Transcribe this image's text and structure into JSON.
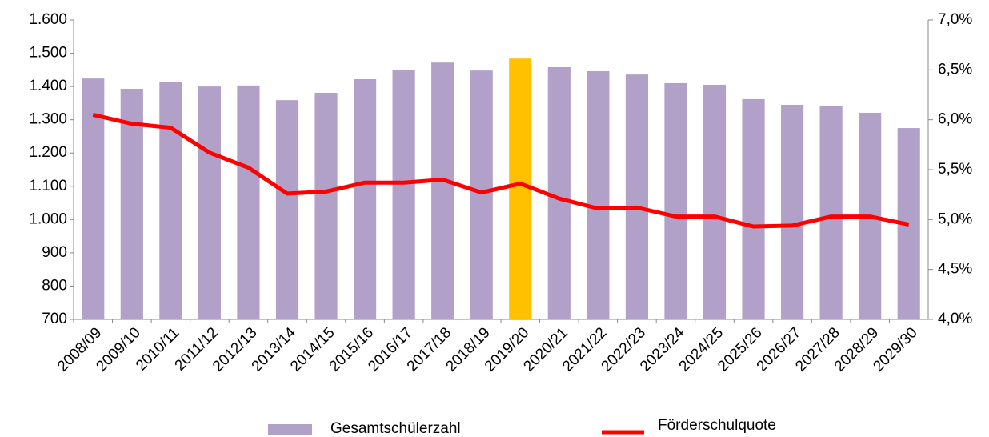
{
  "chart_data": {
    "type": "bar-line",
    "categories": [
      "2008/09",
      "2009/10",
      "2010/11",
      "2011/12",
      "2012/13",
      "2013/14",
      "2014/15",
      "2015/16",
      "2016/17",
      "2017/18",
      "2018/19",
      "2019/20",
      "2020/21",
      "2021/22",
      "2022/23",
      "2023/24",
      "2024/25",
      "2025/26",
      "2026/27",
      "2027/28",
      "2028/29",
      "2029/30"
    ],
    "series": [
      {
        "name": "Gesamtschülerzahl",
        "type": "bar",
        "color": "#b1a0c7",
        "colors": [
          "#b1a0c7",
          "#b1a0c7",
          "#b1a0c7",
          "#b1a0c7",
          "#b1a0c7",
          "#b1a0c7",
          "#b1a0c7",
          "#b1a0c7",
          "#b1a0c7",
          "#b1a0c7",
          "#b1a0c7",
          "#ffc000",
          "#b1a0c7",
          "#b1a0c7",
          "#b1a0c7",
          "#b1a0c7",
          "#b1a0c7",
          "#b1a0c7",
          "#b1a0c7",
          "#b1a0c7",
          "#b1a0c7",
          "#b1a0c7"
        ],
        "values": [
          1424,
          1393,
          1414,
          1400,
          1403,
          1359,
          1381,
          1422,
          1450,
          1472,
          1448,
          1484,
          1458,
          1446,
          1436,
          1410,
          1405,
          1362,
          1345,
          1342,
          1321,
          1275
        ]
      },
      {
        "name": "Förderschulquote",
        "type": "line",
        "color": "#ff0000",
        "axis": "y2",
        "values": [
          6.05,
          5.96,
          5.92,
          5.67,
          5.52,
          5.26,
          5.28,
          5.37,
          5.37,
          5.4,
          5.27,
          5.36,
          5.21,
          5.11,
          5.12,
          5.03,
          5.03,
          4.93,
          4.94,
          5.03,
          5.03,
          4.95
        ]
      }
    ],
    "ylim": [
      700,
      1600
    ],
    "yticks": [
      700,
      800,
      900,
      {
        "value": 1000,
        "label": "1.000"
      },
      {
        "value": 1100,
        "label": "1.100"
      },
      {
        "value": 1200,
        "label": "1.200"
      },
      {
        "value": 1300,
        "label": "1.300"
      },
      {
        "value": 1400,
        "label": "1.400"
      },
      {
        "value": 1500,
        "label": "1.500"
      },
      {
        "value": 1600,
        "label": "1.600"
      }
    ],
    "y2lim": [
      4,
      7
    ],
    "y2ticks": [
      {
        "value": 4,
        "label": "4,0%"
      },
      {
        "value": 4.5,
        "label": "4,5%"
      },
      {
        "value": 5,
        "label": "5,0%"
      },
      {
        "value": 5.5,
        "label": "5,5%"
      },
      {
        "value": 6,
        "label": "6,0%"
      },
      {
        "value": 6.5,
        "label": "6,5%"
      },
      {
        "value": 7,
        "label": "7,0%"
      }
    ],
    "grid": false,
    "legend": "bottom"
  }
}
